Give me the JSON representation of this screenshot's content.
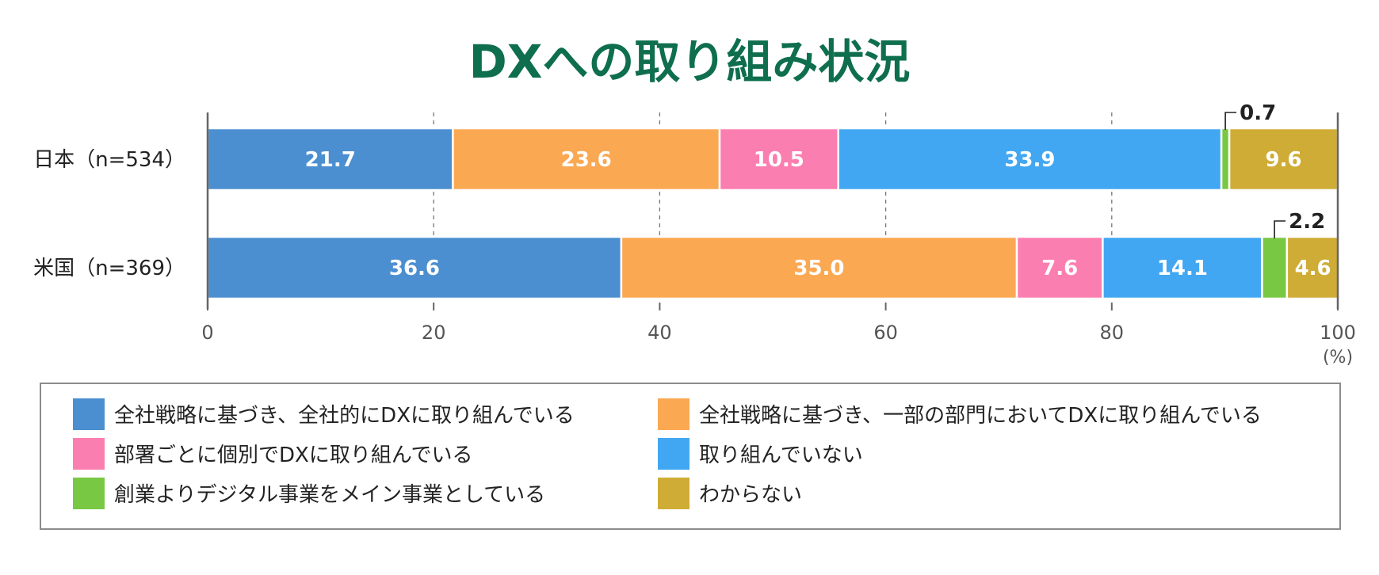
{
  "chart_data": {
    "type": "bar",
    "orientation": "horizontal",
    "stacked": true,
    "title": "DXへの取り組み状況",
    "categories": [
      "日本（n=534）",
      "米国（n=369）"
    ],
    "series": [
      {
        "name": "全社戦略に基づき、全社的にDXに取り組んでいる",
        "color": "#4b8fd1",
        "values": [
          21.7,
          36.6
        ]
      },
      {
        "name": "全社戦略に基づき、一部の部門においてDXに取り組んでいる",
        "color": "#fba853",
        "values": [
          23.6,
          35.0
        ]
      },
      {
        "name": "部署ごとに個別でDXに取り組んでいる",
        "color": "#fb7eb0",
        "values": [
          10.5,
          7.6
        ]
      },
      {
        "name": "取り組んでいない",
        "color": "#42a7f2",
        "values": [
          33.9,
          14.1
        ]
      },
      {
        "name": "創業よりデジタル事業をメイン事業としている",
        "color": "#78c843",
        "values": [
          0.7,
          2.2
        ]
      },
      {
        "name": "わからない",
        "color": "#cfac35",
        "values": [
          9.6,
          4.6
        ]
      }
    ],
    "value_labels": [
      [
        "21.7",
        "23.6",
        "10.5",
        "33.9",
        "0.7",
        "9.6"
      ],
      [
        "36.6",
        "35.0",
        "7.6",
        "14.1",
        "2.2",
        "4.6"
      ]
    ],
    "xlim": [
      0,
      100
    ],
    "xticks": [
      "0",
      "20",
      "40",
      "60",
      "80",
      "100"
    ],
    "xunit": "(%)",
    "grid": "dashed vertical",
    "legend_position": "bottom"
  }
}
